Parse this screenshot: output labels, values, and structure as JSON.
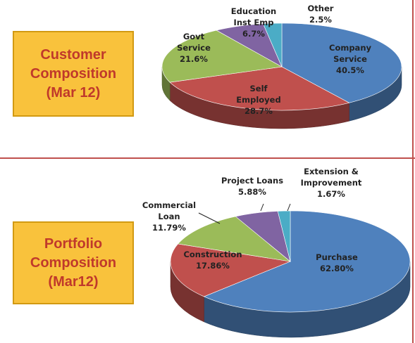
{
  "chart_data": [
    {
      "type": "pie",
      "title": [
        "Customer",
        "Composition",
        "(Mar 12)"
      ],
      "slices": [
        {
          "label": [
            "Company",
            "Service"
          ],
          "value": 40.5,
          "display": "40.5%",
          "color": "#4f81bd"
        },
        {
          "label": [
            "Self",
            "Employed"
          ],
          "value": 28.7,
          "display": "28.7%",
          "color": "#c0504d"
        },
        {
          "label": [
            "Govt",
            "Service"
          ],
          "value": 21.6,
          "display": "21.6%",
          "color": "#9bbb59"
        },
        {
          "label": [
            "Education",
            "Inst Emp"
          ],
          "value": 6.7,
          "display": "6.7%",
          "color": "#8064a2"
        },
        {
          "label": [
            "Other"
          ],
          "value": 2.5,
          "display": "2.5%",
          "color": "#4bacc6"
        }
      ]
    },
    {
      "type": "pie",
      "title": [
        "Portfolio",
        "Composition",
        "(Mar12)"
      ],
      "slices": [
        {
          "label": [
            "Purchase"
          ],
          "value": 62.8,
          "display": "62.80%",
          "color": "#4f81bd"
        },
        {
          "label": [
            "Construction"
          ],
          "value": 17.86,
          "display": "17.86%",
          "color": "#c0504d"
        },
        {
          "label": [
            "Commercial",
            "Loan"
          ],
          "value": 11.79,
          "display": "11.79%",
          "color": "#9bbb59"
        },
        {
          "label": [
            "Project Loans"
          ],
          "value": 5.88,
          "display": "5.88%",
          "color": "#8064a2"
        },
        {
          "label": [
            "Extension &",
            "Improvement"
          ],
          "value": 1.67,
          "display": "1.67%",
          "color": "#4bacc6"
        }
      ]
    }
  ]
}
